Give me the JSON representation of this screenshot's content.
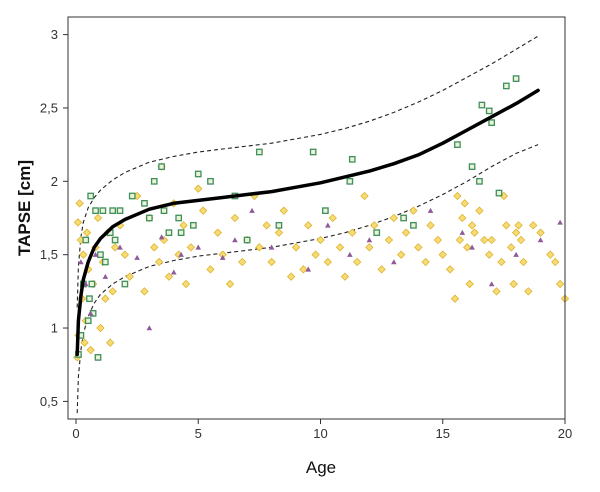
{
  "chart_data": {
    "type": "scatter",
    "xlabel": "Age",
    "ylabel": "TAPSE [cm]",
    "xlim": [
      0,
      20
    ],
    "ylim": [
      0.38,
      3.12
    ],
    "x_ticks": [
      0,
      5,
      10,
      15,
      20
    ],
    "x_tick_labels": [
      "0",
      "5",
      "10",
      "15",
      "20"
    ],
    "y_ticks": [
      0.5,
      1,
      1.5,
      2,
      2.5,
      3
    ],
    "y_tick_labels": [
      "0,5",
      "1",
      "1,5",
      "2",
      "2,5",
      "3"
    ],
    "grid": false,
    "legend": "none",
    "colors": {
      "mean_curve": "#000000",
      "bounds": "#222222",
      "diamond_fill": "#f5dc74",
      "diamond_stroke": "#e0b22e",
      "square_stroke": "#3f8f5c",
      "square_fill": "#eaf2d8",
      "triangle": "#8e5a9a"
    },
    "series": [
      {
        "line": "solid-thick",
        "x": [
          0.05,
          0.1,
          0.2,
          0.3,
          0.5,
          0.75,
          1.0,
          1.5,
          2.0,
          3.0,
          4.0,
          5.0,
          6.0,
          7.0,
          8.0,
          9.0,
          10.0,
          11.0,
          12.0,
          13.0,
          14.0,
          15.0,
          16.0,
          17.0,
          18.0,
          18.9
        ],
        "y": [
          0.82,
          1.05,
          1.22,
          1.33,
          1.45,
          1.55,
          1.61,
          1.69,
          1.74,
          1.81,
          1.85,
          1.87,
          1.89,
          1.91,
          1.93,
          1.96,
          1.99,
          2.03,
          2.07,
          2.12,
          2.18,
          2.26,
          2.35,
          2.44,
          2.53,
          2.62
        ]
      },
      {
        "line": "dashed",
        "x": [
          0.05,
          0.1,
          0.2,
          0.3,
          0.5,
          0.75,
          1.0,
          1.5,
          2.0,
          3.0,
          4.0,
          5.0,
          6.0,
          7.0,
          8.0,
          9.0,
          10.0,
          11.0,
          12.0,
          13.0,
          14.0,
          15.0,
          16.0,
          17.0,
          18.0,
          18.9
        ],
        "y": [
          1.14,
          1.42,
          1.62,
          1.72,
          1.82,
          1.89,
          1.94,
          2.01,
          2.06,
          2.13,
          2.17,
          2.2,
          2.22,
          2.24,
          2.26,
          2.29,
          2.32,
          2.36,
          2.41,
          2.47,
          2.54,
          2.62,
          2.71,
          2.8,
          2.9,
          2.99
        ]
      },
      {
        "line": "dashed",
        "x": [
          0.05,
          0.1,
          0.2,
          0.3,
          0.5,
          0.75,
          1.0,
          1.5,
          2.0,
          3.0,
          4.0,
          5.0,
          6.0,
          7.0,
          8.0,
          9.0,
          10.0,
          11.0,
          12.0,
          13.0,
          14.0,
          15.0,
          16.0,
          17.0,
          18.0,
          18.9
        ],
        "y": [
          0.42,
          0.67,
          0.85,
          0.96,
          1.08,
          1.17,
          1.23,
          1.3,
          1.35,
          1.42,
          1.46,
          1.49,
          1.51,
          1.53,
          1.55,
          1.58,
          1.61,
          1.65,
          1.7,
          1.76,
          1.83,
          1.91,
          2.0,
          2.1,
          2.19,
          2.25
        ]
      },
      {
        "marker": "diamond",
        "x": [
          0.05,
          0.08,
          0.1,
          0.15,
          0.2,
          0.25,
          0.3,
          0.35,
          0.4,
          0.45,
          0.5,
          0.6,
          0.7,
          0.8,
          0.9,
          1.0,
          1.1,
          1.2,
          1.3,
          1.4,
          1.5,
          1.6,
          1.8,
          2.0,
          2.2,
          2.5,
          2.8,
          3.0,
          3.2,
          3.4,
          3.5,
          3.6,
          3.8,
          4.0,
          4.2,
          4.4,
          4.5,
          4.7,
          5.0,
          5.2,
          5.5,
          5.8,
          6.0,
          6.3,
          6.5,
          6.8,
          7.0,
          7.3,
          7.5,
          7.8,
          8.0,
          8.3,
          8.5,
          8.8,
          9.0,
          9.3,
          9.5,
          9.8,
          10.0,
          10.3,
          10.5,
          10.8,
          11.0,
          11.3,
          11.5,
          11.8,
          12.0,
          12.2,
          12.5,
          12.8,
          13.0,
          13.3,
          13.5,
          13.8,
          14.0,
          14.3,
          14.5,
          14.8,
          15.0,
          15.3,
          15.5,
          15.6,
          15.7,
          15.8,
          15.9,
          16.0,
          16.1,
          16.2,
          16.3,
          16.5,
          16.7,
          16.9,
          17.0,
          17.2,
          17.4,
          17.5,
          17.6,
          17.8,
          17.9,
          18.0,
          18.1,
          18.2,
          18.3,
          18.5,
          18.7,
          19.0,
          19.4,
          19.6,
          19.8,
          20.0
        ],
        "y": [
          0.8,
          1.72,
          0.95,
          1.85,
          1.6,
          1.2,
          1.5,
          0.9,
          1.05,
          1.65,
          1.4,
          0.85,
          1.3,
          1.55,
          1.75,
          1.0,
          1.45,
          1.2,
          1.65,
          0.9,
          1.25,
          1.55,
          1.7,
          1.5,
          1.35,
          1.9,
          1.25,
          1.75,
          1.55,
          1.45,
          2.1,
          1.6,
          1.35,
          1.85,
          1.5,
          1.7,
          1.3,
          1.55,
          1.95,
          1.8,
          1.4,
          1.65,
          1.5,
          1.3,
          1.75,
          1.45,
          1.6,
          1.9,
          1.55,
          1.7,
          1.45,
          1.65,
          1.8,
          1.35,
          1.55,
          1.4,
          1.7,
          1.5,
          1.6,
          1.45,
          1.75,
          1.55,
          1.35,
          1.65,
          1.45,
          1.9,
          1.55,
          1.7,
          1.4,
          1.6,
          1.75,
          1.5,
          1.65,
          1.8,
          1.55,
          1.45,
          1.7,
          1.6,
          1.5,
          1.4,
          1.2,
          1.9,
          1.6,
          1.75,
          1.85,
          1.55,
          1.3,
          1.7,
          1.65,
          1.8,
          1.6,
          1.5,
          1.6,
          1.25,
          1.45,
          1.9,
          1.7,
          1.55,
          1.3,
          1.65,
          1.7,
          1.6,
          1.45,
          1.25,
          1.7,
          1.65,
          1.5,
          1.45,
          1.3,
          1.2
        ]
      },
      {
        "marker": "square",
        "x": [
          0.1,
          0.2,
          0.3,
          0.4,
          0.5,
          0.55,
          0.6,
          0.65,
          0.7,
          0.8,
          0.9,
          1.0,
          1.1,
          1.2,
          1.4,
          1.5,
          1.6,
          1.8,
          2.0,
          2.3,
          2.8,
          3.0,
          3.2,
          3.5,
          3.6,
          3.8,
          4.2,
          4.3,
          4.8,
          5.0,
          5.5,
          6.5,
          7.0,
          7.5,
          8.3,
          9.7,
          10.2,
          11.2,
          11.3,
          12.3,
          13.4,
          13.8,
          15.6,
          16.2,
          16.5,
          16.6,
          16.9,
          17.0,
          17.3,
          17.6,
          18.0
        ],
        "y": [
          0.82,
          0.95,
          1.3,
          1.6,
          1.05,
          1.2,
          1.9,
          1.3,
          1.1,
          1.8,
          0.8,
          1.5,
          1.8,
          1.45,
          1.65,
          1.8,
          1.6,
          1.8,
          1.3,
          1.9,
          1.85,
          1.75,
          2.0,
          2.1,
          1.8,
          1.65,
          1.75,
          1.65,
          1.7,
          2.05,
          2.0,
          1.9,
          1.6,
          2.2,
          1.7,
          2.2,
          1.8,
          2.0,
          2.15,
          1.65,
          1.75,
          1.7,
          2.25,
          2.1,
          2.0,
          2.52,
          2.48,
          2.4,
          1.92,
          2.65,
          2.7
        ]
      },
      {
        "marker": "triangle",
        "x": [
          0.2,
          0.4,
          0.6,
          0.8,
          1.2,
          1.8,
          2.5,
          3.0,
          3.5,
          4.0,
          4.3,
          5.0,
          6.0,
          6.5,
          7.2,
          8.0,
          9.5,
          10.3,
          11.2,
          12.0,
          13.0,
          14.5,
          15.8,
          16.2,
          17.0,
          18.0,
          19.0,
          19.8
        ],
        "y": [
          1.45,
          1.3,
          1.1,
          1.5,
          1.35,
          1.55,
          1.48,
          1.0,
          1.62,
          1.38,
          1.5,
          1.55,
          1.48,
          1.6,
          1.8,
          1.55,
          1.4,
          1.7,
          1.5,
          1.6,
          1.45,
          1.8,
          1.65,
          1.55,
          1.3,
          1.5,
          1.6,
          1.72
        ]
      }
    ]
  }
}
